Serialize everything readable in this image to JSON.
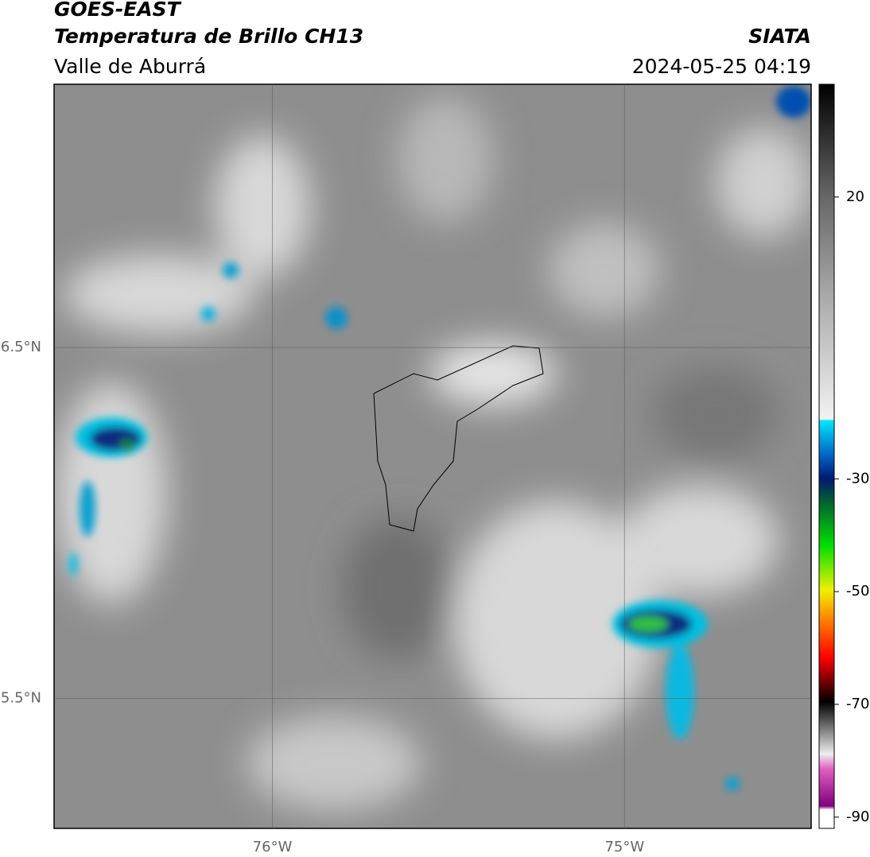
{
  "header": {
    "title": "GOES-EAST",
    "subtitle": "Temperatura de Brillo CH13",
    "region": "Valle de Aburrá",
    "source": "SIATA",
    "timestamp": "2024-05-25 04:19"
  },
  "map": {
    "xlim": [
      -76.62,
      -74.47
    ],
    "ylim": [
      5.13,
      7.25
    ],
    "xticks": [
      {
        "value": -76,
        "label": "76°W"
      },
      {
        "value": -75,
        "label": "75°W"
      }
    ],
    "yticks": [
      {
        "value": 6.5,
        "label": "6.5°N"
      },
      {
        "value": 5.5,
        "label": "5.5°N"
      }
    ]
  },
  "colorbar": {
    "lim": [
      -92,
      40
    ],
    "ticks": [
      20,
      -30,
      -50,
      -70,
      -90
    ]
  }
}
